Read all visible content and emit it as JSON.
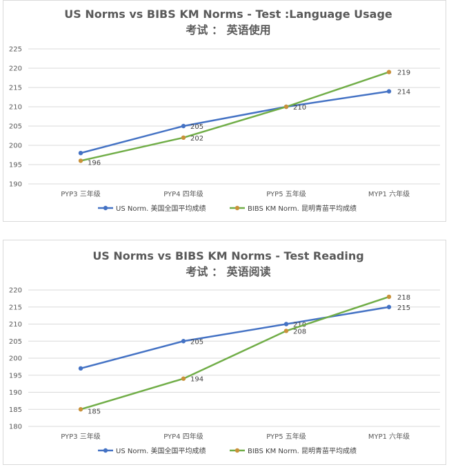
{
  "chart_data": [
    {
      "type": "line",
      "title": "US Norms vs BIBS KM Norms - Test   :Language Usage",
      "subtitle": "考试    ：  英语使用",
      "categories": [
        "PYP3 三年级",
        "PYP4 四年级",
        "PYP5 五年级",
        "MYP1 六年级"
      ],
      "ylim": [
        190,
        225
      ],
      "yticks": [
        190,
        195,
        200,
        205,
        210,
        215,
        220,
        225
      ],
      "grid": true,
      "legend_position": "bottom",
      "series": [
        {
          "name": "US Norm. 美国全国平均成绩",
          "values": [
            198,
            205,
            210,
            214
          ],
          "color": "#4472c4",
          "labels": [
            "",
            "205",
            "",
            "214"
          ]
        },
        {
          "name": "BIBS KM Norm. 昆明青苗平均成绩",
          "values": [
            196,
            202,
            210,
            219
          ],
          "color": "#70ad47",
          "marker_color": "#c9913a",
          "labels": [
            "196",
            "202",
            "210",
            "219"
          ]
        }
      ]
    },
    {
      "type": "line",
      "title": "US Norms vs BIBS KM Norms - Test    Reading",
      "subtitle": "考试    ：  英语阅读",
      "categories": [
        "PYP3 三年级",
        "PYP4 四年级",
        "PYP5 五年级",
        "MYP1 六年级"
      ],
      "ylim": [
        180,
        220
      ],
      "yticks": [
        180,
        185,
        190,
        195,
        200,
        205,
        210,
        215,
        220
      ],
      "grid": true,
      "legend_position": "bottom",
      "series": [
        {
          "name": "US Norm. 美国全国平均成绩",
          "values": [
            197,
            205,
            210,
            215
          ],
          "color": "#4472c4",
          "labels": [
            "",
            "205",
            "210",
            "215"
          ]
        },
        {
          "name": "BIBS KM Norm. 昆明青苗平均成绩",
          "values": [
            185,
            194,
            208,
            218
          ],
          "color": "#70ad47",
          "marker_color": "#c9913a",
          "labels": [
            "185",
            "194",
            "208",
            "218"
          ]
        }
      ]
    }
  ]
}
